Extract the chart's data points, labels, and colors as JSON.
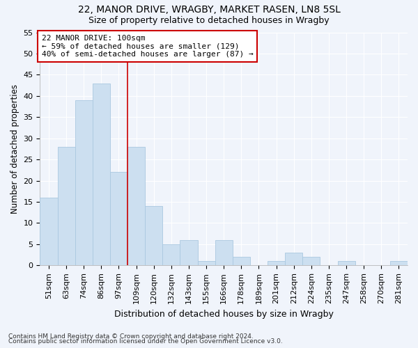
{
  "title1": "22, MANOR DRIVE, WRAGBY, MARKET RASEN, LN8 5SL",
  "title2": "Size of property relative to detached houses in Wragby",
  "xlabel": "Distribution of detached houses by size in Wragby",
  "ylabel": "Number of detached properties",
  "categories": [
    "51sqm",
    "63sqm",
    "74sqm",
    "86sqm",
    "97sqm",
    "109sqm",
    "120sqm",
    "132sqm",
    "143sqm",
    "155sqm",
    "166sqm",
    "178sqm",
    "189sqm",
    "201sqm",
    "212sqm",
    "224sqm",
    "235sqm",
    "247sqm",
    "258sqm",
    "270sqm",
    "281sqm"
  ],
  "values": [
    16,
    28,
    39,
    43,
    22,
    28,
    14,
    5,
    6,
    1,
    6,
    2,
    0,
    1,
    3,
    2,
    0,
    1,
    0,
    0,
    1
  ],
  "bar_color": "#ccdff0",
  "bar_edge_color": "#aac8e0",
  "reference_line_x": 4.5,
  "annotation_title": "22 MANOR DRIVE: 100sqm",
  "annotation_line1": "← 59% of detached houses are smaller (129)",
  "annotation_line2": "40% of semi-detached houses are larger (87) →",
  "annotation_box_facecolor": "#ffffff",
  "annotation_box_edgecolor": "#cc0000",
  "vline_color": "#cc0000",
  "ylim": [
    0,
    55
  ],
  "yticks": [
    0,
    5,
    10,
    15,
    20,
    25,
    30,
    35,
    40,
    45,
    50,
    55
  ],
  "footnote1": "Contains HM Land Registry data © Crown copyright and database right 2024.",
  "footnote2": "Contains public sector information licensed under the Open Government Licence v3.0.",
  "bg_color": "#f0f4fb",
  "grid_color": "#ffffff",
  "title1_fontsize": 10,
  "title2_fontsize": 9,
  "xlabel_fontsize": 9,
  "ylabel_fontsize": 8.5,
  "tick_fontsize": 8,
  "annotation_fontsize": 8,
  "footnote_fontsize": 6.5
}
